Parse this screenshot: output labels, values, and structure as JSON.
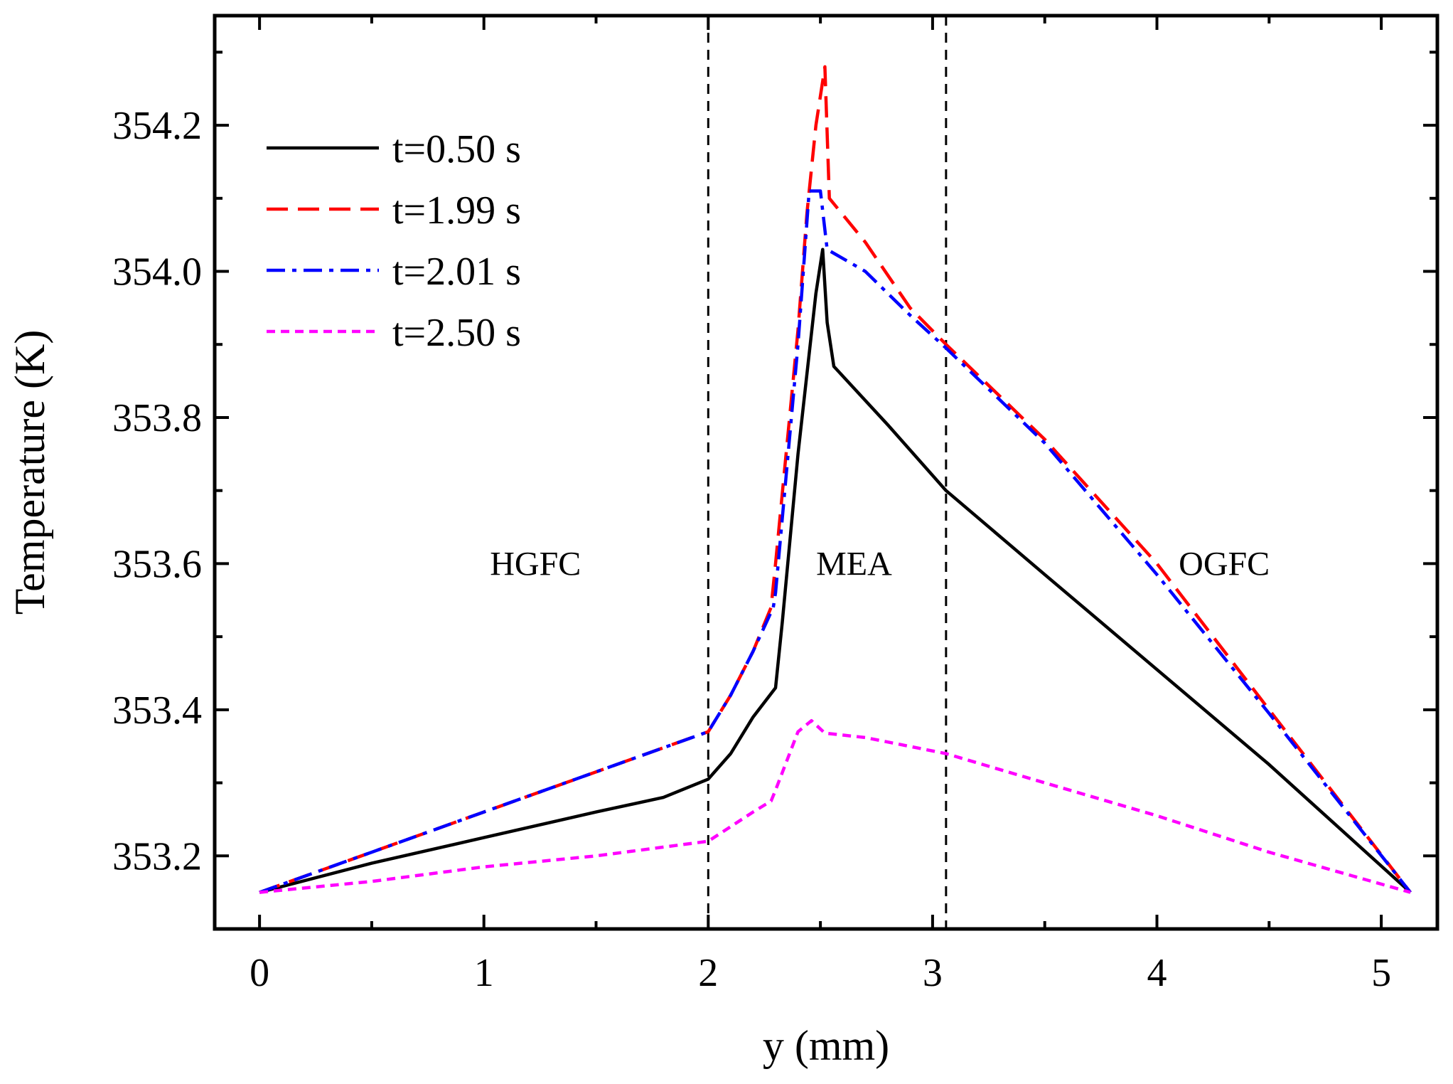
{
  "chart_data": {
    "type": "line",
    "xlabel": "y (mm)",
    "ylabel": "Temperature (K)",
    "xlim": [
      -0.2,
      5.25
    ],
    "ylim": [
      353.1,
      354.35
    ],
    "xticks": [
      {
        "value": 0,
        "label": "0"
      },
      {
        "value": 1,
        "label": "1"
      },
      {
        "value": 2,
        "label": "2"
      },
      {
        "value": 3,
        "label": "3"
      },
      {
        "value": 4,
        "label": "4"
      },
      {
        "value": 5,
        "label": "5"
      }
    ],
    "yticks": [
      {
        "value": 353.2,
        "label": "353.2"
      },
      {
        "value": 353.4,
        "label": "353.4"
      },
      {
        "value": 353.6,
        "label": "353.6"
      },
      {
        "value": 353.8,
        "label": "353.8"
      },
      {
        "value": 354.0,
        "label": "354.0"
      },
      {
        "value": 354.2,
        "label": "354.2"
      }
    ],
    "xminor": [
      0.5,
      1.5,
      2.5,
      3.5,
      4.5
    ],
    "yminor": [
      353.1,
      353.3,
      353.5,
      353.7,
      353.9,
      354.1,
      354.3
    ],
    "grid": false,
    "legend_position": "top-left",
    "dividers": [
      {
        "x": 2.0,
        "style": "dashed",
        "color": "#000000"
      },
      {
        "x": 3.06,
        "style": "dashed",
        "color": "#000000"
      }
    ],
    "regions": [
      {
        "label": "HGFC",
        "x": 1.23,
        "y": 353.6
      },
      {
        "label": "MEA",
        "x": 2.65,
        "y": 353.6
      },
      {
        "label": "OGFC",
        "x": 4.3,
        "y": 353.6
      }
    ],
    "series": [
      {
        "name": "t=0.50 s",
        "color": "#000000",
        "dash": "solid",
        "x": [
          0,
          0.5,
          1.0,
          1.5,
          1.8,
          2.0,
          2.1,
          2.2,
          2.3,
          2.33,
          2.4,
          2.48,
          2.51,
          2.53,
          2.56,
          2.65,
          2.8,
          3.06,
          3.5,
          4.0,
          4.5,
          5.13
        ],
        "y": [
          353.15,
          353.19,
          353.225,
          353.26,
          353.28,
          353.305,
          353.34,
          353.39,
          353.43,
          353.52,
          353.75,
          353.97,
          354.03,
          353.93,
          353.87,
          353.84,
          353.79,
          353.7,
          353.585,
          353.455,
          353.325,
          353.15
        ]
      },
      {
        "name": "t=1.99 s",
        "color": "#ff0000",
        "dash": "dashed",
        "x": [
          0,
          0.5,
          1.0,
          1.5,
          2.0,
          2.1,
          2.2,
          2.28,
          2.3,
          2.4,
          2.44,
          2.48,
          2.52,
          2.54,
          2.7,
          2.9,
          3.06,
          3.5,
          4.0,
          4.5,
          5.13
        ],
        "y": [
          353.15,
          353.205,
          353.26,
          353.315,
          353.37,
          353.42,
          353.48,
          353.54,
          353.6,
          353.92,
          354.08,
          354.2,
          354.28,
          354.1,
          354.04,
          353.95,
          353.9,
          353.77,
          353.6,
          353.4,
          353.15
        ]
      },
      {
        "name": "t=2.01 s",
        "color": "#0000ff",
        "dash": "dashdot",
        "x": [
          0,
          0.5,
          1.0,
          1.5,
          2.0,
          2.1,
          2.2,
          2.29,
          2.3,
          2.4,
          2.45,
          2.5,
          2.53,
          2.7,
          2.9,
          3.06,
          3.5,
          4.0,
          4.5,
          5.13
        ],
        "y": [
          353.15,
          353.205,
          353.26,
          353.315,
          353.37,
          353.42,
          353.48,
          353.54,
          353.56,
          353.9,
          354.11,
          354.11,
          354.03,
          354.0,
          353.94,
          353.895,
          353.765,
          353.585,
          353.395,
          353.15
        ]
      },
      {
        "name": "t=2.50 s",
        "color": "#ff00ff",
        "dash": "dotted",
        "x": [
          0,
          0.5,
          1.0,
          1.5,
          2.0,
          2.1,
          2.2,
          2.28,
          2.3,
          2.4,
          2.46,
          2.52,
          2.7,
          3.06,
          3.5,
          4.0,
          4.5,
          5.13
        ],
        "y": [
          353.15,
          353.165,
          353.185,
          353.2,
          353.22,
          353.24,
          353.26,
          353.275,
          353.29,
          353.37,
          353.385,
          353.368,
          353.362,
          353.34,
          353.3,
          353.255,
          353.205,
          353.15
        ]
      }
    ]
  }
}
